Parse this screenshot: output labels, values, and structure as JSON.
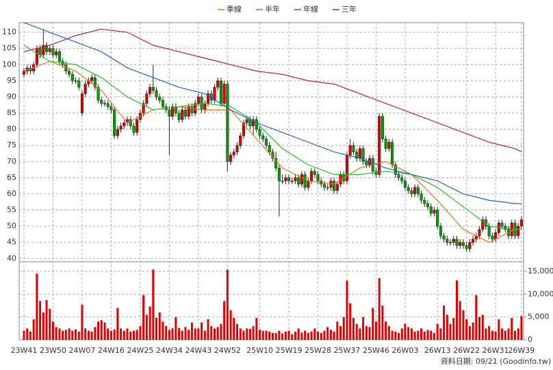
{
  "chart_data": {
    "type": "candlestick",
    "series": [
      {
        "name": "季線",
        "color": "#e8731a",
        "x": [
          0,
          8,
          16,
          24,
          32,
          40,
          48,
          56,
          64,
          72,
          80,
          88,
          96,
          104,
          112,
          120,
          128,
          136,
          144,
          152,
          154
        ],
        "values": [
          98,
          101,
          98,
          92,
          82,
          86,
          87,
          86,
          86,
          77,
          68,
          64,
          63,
          68,
          70,
          66,
          58,
          49,
          45,
          49,
          49
        ]
      },
      {
        "name": "半年",
        "color": "#22c022",
        "x": [
          0,
          8,
          16,
          24,
          32,
          40,
          48,
          56,
          64,
          72,
          80,
          88,
          96,
          104,
          112,
          120,
          128,
          136,
          144,
          152,
          154
        ],
        "values": [
          106,
          101,
          100,
          96,
          90,
          86,
          87,
          88,
          87,
          82,
          74,
          69,
          66,
          66,
          67,
          66,
          62,
          56,
          50,
          49,
          49
        ]
      },
      {
        "name": "年線",
        "color": "#2060d0",
        "x": [
          0,
          8,
          16,
          24,
          32,
          40,
          48,
          56,
          64,
          72,
          80,
          88,
          96,
          104,
          112,
          120,
          128,
          136,
          144,
          152,
          154
        ],
        "values": [
          113,
          110,
          107,
          104,
          99,
          96,
          93,
          91,
          86,
          82,
          79,
          76,
          73,
          71,
          68,
          66,
          64,
          60,
          58,
          57,
          57
        ]
      },
      {
        "name": "三年",
        "color": "#c0185a",
        "x": [
          0,
          8,
          16,
          24,
          32,
          40,
          48,
          56,
          64,
          72,
          80,
          88,
          96,
          104,
          112,
          120,
          128,
          136,
          144,
          152,
          154
        ],
        "values": [
          104,
          106,
          109,
          111,
          110,
          106,
          104,
          102,
          100,
          98,
          97,
          95,
          94,
          91,
          88,
          85,
          82,
          79,
          76,
          74,
          73
        ]
      }
    ],
    "categories": [
      "23W41",
      null,
      null,
      null,
      null,
      null,
      null,
      null,
      null,
      "23W50",
      null,
      null,
      null,
      null,
      null,
      null,
      null,
      null,
      "24W07",
      null,
      null,
      null,
      null,
      null,
      null,
      null,
      null,
      "24W16",
      null,
      null,
      null,
      null,
      null,
      null,
      null,
      null,
      "24W25",
      null,
      null,
      null,
      null,
      null,
      null,
      null,
      null,
      "24W34",
      null,
      null,
      null,
      null,
      null,
      null,
      null,
      null,
      "24W43",
      null,
      null,
      null,
      null,
      null,
      null,
      null,
      null,
      "24W52",
      null,
      null,
      null,
      null,
      null,
      null,
      null,
      null,
      null,
      "25W10",
      null,
      null,
      null,
      null,
      null,
      null,
      null,
      null,
      "25W19",
      null,
      null,
      null,
      null,
      null,
      null,
      null,
      null,
      "25W28",
      null,
      null,
      null,
      null,
      null,
      null,
      null,
      null,
      "25W37",
      null,
      null,
      null,
      null,
      null,
      null,
      null,
      null,
      "25W46",
      null,
      null,
      null,
      null,
      null,
      null,
      null,
      null,
      "26W03",
      null,
      null,
      null,
      null,
      null,
      null,
      null,
      null,
      null,
      "26W13",
      null,
      null,
      null,
      null,
      null,
      null,
      null,
      null,
      "26W22",
      null,
      null,
      null,
      null,
      null,
      null,
      null,
      null,
      "26W31",
      null,
      null,
      null,
      null,
      null,
      null,
      null,
      "26W39"
    ],
    "open": [
      97,
      98,
      99,
      98,
      100,
      105,
      103,
      106,
      104,
      105,
      103,
      104,
      101,
      100,
      98,
      97,
      95,
      95,
      85,
      91,
      94,
      95,
      96,
      93,
      89,
      88,
      88,
      87,
      86,
      78,
      80,
      81,
      82,
      83,
      81,
      79,
      83,
      85,
      88,
      91,
      93,
      92,
      90,
      89,
      87,
      86,
      84,
      87,
      85,
      83,
      86,
      84,
      87,
      85,
      88,
      90,
      86,
      88,
      91,
      89,
      93,
      95,
      88,
      94,
      70,
      72,
      73,
      75,
      78,
      82,
      83,
      81,
      83,
      80,
      78,
      77,
      75,
      73,
      71,
      68,
      64,
      64,
      65,
      64,
      64,
      65,
      63,
      66,
      62,
      64,
      67,
      66,
      64,
      63,
      62,
      62,
      64,
      61,
      63,
      66,
      64,
      72,
      75,
      73,
      71,
      74,
      70,
      69,
      71,
      67,
      66,
      84,
      77,
      74,
      76,
      69,
      66,
      65,
      64,
      62,
      61,
      60,
      62,
      60,
      58,
      57,
      56,
      54,
      55,
      50,
      47,
      46,
      45,
      45,
      46,
      44,
      45,
      44,
      43,
      45,
      46,
      47,
      49,
      52,
      50,
      47,
      46,
      48,
      51,
      50,
      49,
      47,
      51,
      47,
      50
    ],
    "high": [
      99,
      100,
      100,
      101,
      106,
      106,
      111,
      107,
      106,
      106,
      105,
      105,
      102,
      101,
      99,
      98,
      96,
      96,
      92,
      95,
      96,
      97,
      97,
      94,
      90,
      89,
      89,
      88,
      87,
      81,
      82,
      83,
      84,
      84,
      82,
      84,
      86,
      89,
      92,
      94,
      100,
      93,
      91,
      90,
      88,
      87,
      88,
      88,
      86,
      87,
      87,
      88,
      88,
      89,
      91,
      91,
      89,
      92,
      92,
      94,
      96,
      96,
      95,
      95,
      73,
      74,
      76,
      79,
      83,
      84,
      84,
      84,
      84,
      81,
      79,
      78,
      76,
      74,
      73,
      69,
      66,
      66,
      66,
      65,
      66,
      66,
      67,
      67,
      65,
      68,
      68,
      67,
      65,
      64,
      63,
      65,
      65,
      64,
      67,
      67,
      73,
      77,
      76,
      74,
      75,
      75,
      71,
      72,
      72,
      68,
      85,
      85,
      78,
      77,
      77,
      70,
      67,
      66,
      65,
      63,
      62,
      63,
      63,
      61,
      59,
      58,
      57,
      56,
      56,
      51,
      48,
      47,
      46,
      47,
      47,
      46,
      46,
      45,
      46,
      47,
      48,
      50,
      53,
      53,
      51,
      48,
      49,
      52,
      52,
      51,
      50,
      52,
      52,
      51,
      53
    ],
    "low": [
      96,
      97,
      97,
      97,
      99,
      102,
      102,
      103,
      103,
      102,
      102,
      100,
      99,
      97,
      96,
      94,
      94,
      92,
      84,
      90,
      93,
      94,
      92,
      88,
      87,
      87,
      86,
      85,
      77,
      77,
      79,
      80,
      81,
      80,
      78,
      78,
      82,
      84,
      87,
      90,
      91,
      89,
      88,
      86,
      85,
      72,
      83,
      84,
      82,
      82,
      83,
      83,
      84,
      84,
      87,
      85,
      85,
      87,
      88,
      88,
      92,
      87,
      87,
      67,
      69,
      71,
      72,
      74,
      77,
      81,
      80,
      78,
      79,
      77,
      76,
      74,
      72,
      70,
      67,
      53,
      63,
      63,
      63,
      63,
      63,
      62,
      62,
      61,
      61,
      63,
      65,
      63,
      62,
      61,
      61,
      61,
      60,
      60,
      62,
      63,
      63,
      71,
      72,
      70,
      70,
      69,
      68,
      68,
      66,
      65,
      65,
      76,
      73,
      73,
      68,
      65,
      64,
      63,
      61,
      60,
      59,
      59,
      59,
      57,
      56,
      55,
      53,
      53,
      49,
      46,
      45,
      44,
      44,
      44,
      43,
      43,
      43,
      42,
      42,
      44,
      45,
      46,
      48,
      49,
      46,
      45,
      45,
      47,
      49,
      48,
      46,
      46,
      46,
      46,
      49
    ],
    "close": [
      98,
      99,
      98,
      100,
      105,
      103,
      106,
      104,
      105,
      103,
      104,
      101,
      100,
      98,
      97,
      95,
      95,
      93,
      91,
      94,
      95,
      96,
      93,
      89,
      88,
      88,
      87,
      86,
      78,
      80,
      81,
      82,
      83,
      81,
      79,
      83,
      85,
      88,
      91,
      93,
      92,
      90,
      89,
      87,
      86,
      84,
      87,
      85,
      83,
      86,
      84,
      87,
      85,
      88,
      90,
      86,
      88,
      91,
      89,
      93,
      95,
      88,
      94,
      70,
      72,
      73,
      75,
      78,
      82,
      83,
      81,
      83,
      80,
      78,
      77,
      75,
      73,
      71,
      68,
      64,
      64,
      65,
      64,
      64,
      65,
      63,
      66,
      62,
      64,
      67,
      66,
      64,
      63,
      62,
      62,
      64,
      61,
      63,
      66,
      64,
      72,
      75,
      73,
      71,
      74,
      70,
      69,
      71,
      67,
      66,
      84,
      77,
      74,
      76,
      69,
      66,
      65,
      64,
      62,
      61,
      60,
      62,
      60,
      58,
      57,
      56,
      54,
      55,
      50,
      47,
      46,
      45,
      45,
      46,
      44,
      45,
      44,
      43,
      45,
      46,
      47,
      49,
      52,
      50,
      47,
      46,
      48,
      51,
      50,
      49,
      47,
      51,
      47,
      50,
      52
    ],
    "volume": [
      2000,
      2500,
      1800,
      4500,
      14500,
      8500,
      6000,
      8700,
      6800,
      4000,
      2800,
      2500,
      2000,
      2200,
      2500,
      2000,
      2300,
      1800,
      7700,
      2500,
      2000,
      1800,
      2800,
      4000,
      4300,
      3800,
      2500,
      2000,
      2300,
      7000,
      2500,
      2000,
      2500,
      1800,
      2000,
      2200,
      3000,
      9800,
      5500,
      7300,
      15400,
      4800,
      6000,
      4000,
      3000,
      2200,
      2500,
      5000,
      2600,
      2000,
      2800,
      2200,
      3800,
      2500,
      2500,
      3800,
      2000,
      4500,
      3000,
      2500,
      2800,
      3500,
      8500,
      15400,
      6500,
      4800,
      3500,
      2500,
      2000,
      2500,
      2400,
      3000,
      4800,
      2200,
      2000,
      2000,
      1800,
      1500,
      1500,
      2000,
      1400,
      1800,
      2000,
      1200,
      1800,
      2500,
      1600,
      2000,
      1500,
      1800,
      2500,
      1800,
      1500,
      2000,
      2800,
      2200,
      1800,
      4000,
      3000,
      5000,
      13000,
      8000,
      4800,
      3500,
      2500,
      5000,
      3000,
      2800,
      7000,
      4000,
      13500,
      7500,
      4000,
      3000,
      2000,
      1800,
      1500,
      2500,
      3500,
      2800,
      2500,
      1800,
      2000,
      2500,
      1800,
      2200,
      2000,
      1500,
      3500,
      2500,
      7500,
      5500,
      3500,
      4800,
      13000,
      8500,
      6500,
      4500,
      3000,
      3800,
      9800,
      5000,
      5500,
      2500,
      3000,
      2000,
      1800,
      4500,
      2500,
      2000,
      2500,
      4800,
      2000,
      2500,
      5200
    ],
    "up_color": "#e00000",
    "down_color": "#00a000",
    "volume_color": "#e00000",
    "ylim": [
      39,
      113
    ],
    "yticks": [
      40,
      45,
      50,
      55,
      60,
      65,
      70,
      75,
      80,
      85,
      90,
      95,
      100,
      105,
      110
    ],
    "y2lim": [
      0,
      17100
    ],
    "y2ticks": [
      0,
      {
        "value": 5000,
        "label": "5,000"
      },
      {
        "value": 10000,
        "label": "10,000"
      },
      {
        "value": 15000,
        "label": "15,000"
      }
    ],
    "grid": true,
    "source": "資料日期: 09/21 (Goodinfo.tw)"
  }
}
